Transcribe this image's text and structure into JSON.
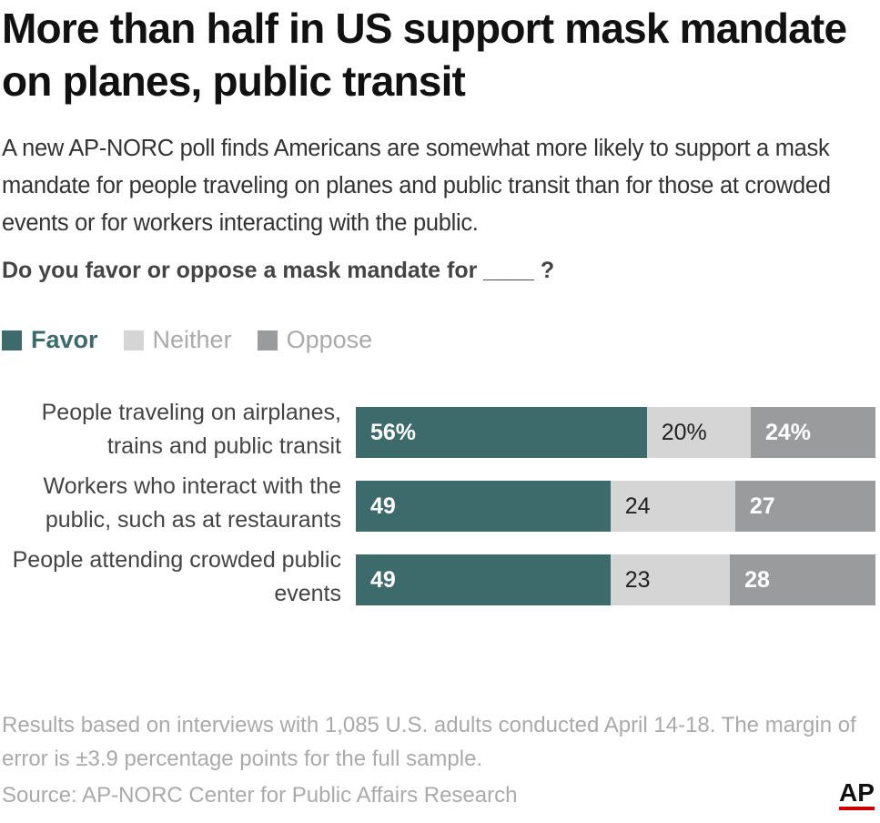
{
  "chart_data": {
    "type": "stacked_bar",
    "title": "More than half in US support mask mandate on planes, public transit",
    "subtitle": "A new AP-NORC poll finds Americans are somewhat more likely to support a mask mandate for people traveling on planes and public transit than for those at crowded events or for workers interacting with the public.",
    "question": "Do you favor or oppose a mask mandate for ____ ?",
    "categories": [
      "People traveling on airplanes, trains and public transit",
      "Workers who interact with the public, such as at restaurants",
      "People attending crowded public events"
    ],
    "series": [
      {
        "name": "Favor",
        "color": "#3d6b6b",
        "values": [
          56,
          49,
          49
        ],
        "value_labels": [
          "56%",
          "49",
          "49"
        ]
      },
      {
        "name": "Neither",
        "color": "#d5d5d5",
        "values": [
          20,
          24,
          23
        ],
        "value_labels": [
          "20%",
          "24",
          "23"
        ]
      },
      {
        "name": "Oppose",
        "color": "#9a9b9d",
        "values": [
          24,
          27,
          28
        ],
        "value_labels": [
          "24%",
          "27",
          "28"
        ]
      }
    ],
    "note": "Results based on interviews with 1,085 U.S. adults conducted April 14-18. The margin of error is ±3.9 percentage points for the full sample.",
    "source": "Source: AP-NORC Center for Public Affairs Research"
  },
  "logo": "AP"
}
